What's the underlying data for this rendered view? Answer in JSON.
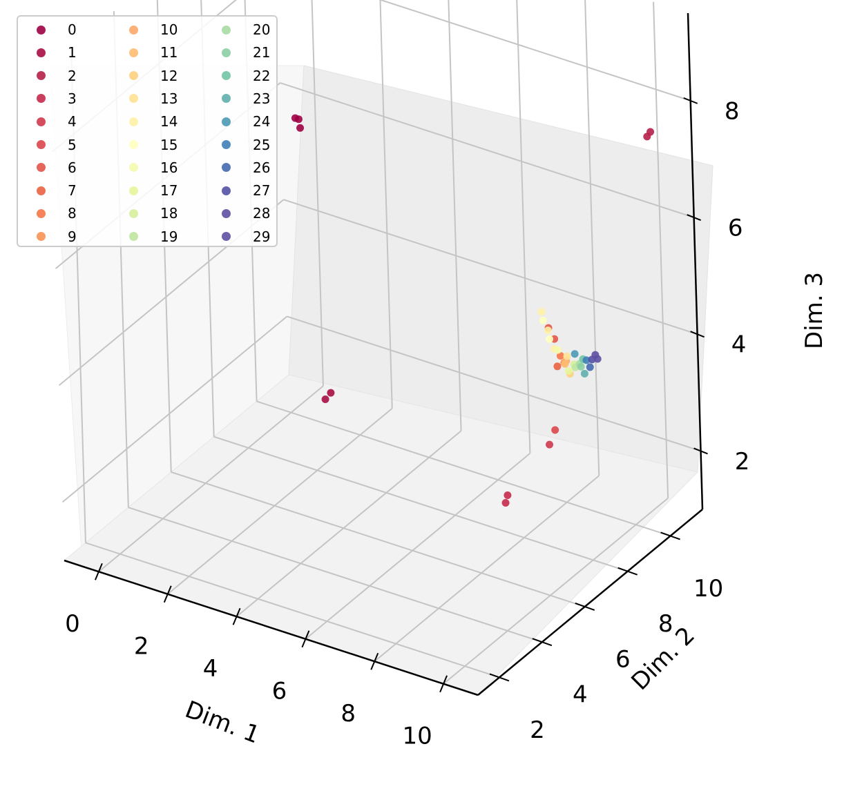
{
  "chart_data": {
    "type": "scatter",
    "projection": "3d",
    "xlabel": "Dim. 1",
    "ylabel": "Dim. 2",
    "zlabel": "Dim. 3",
    "x_ticks": [
      "0",
      "2",
      "4",
      "6",
      "8",
      "10"
    ],
    "y_ticks": [
      "2",
      "4",
      "6",
      "8",
      "10"
    ],
    "z_ticks": [
      "2",
      "4",
      "6",
      "8"
    ],
    "xlim": [
      -1,
      11
    ],
    "ylim": [
      1,
      11.5
    ],
    "zlim": [
      1,
      9.5
    ],
    "grid": true,
    "legend_position": "top-left",
    "legend_columns": 3,
    "series": [
      {
        "name": "0",
        "color": "#9e0142",
        "points": [
          [
            0.5,
            9.8,
            6.2
          ],
          [
            0.6,
            9.8,
            6.2
          ],
          [
            0.7,
            9.7,
            6.1
          ]
        ]
      },
      {
        "name": "1",
        "color": "#a90d44",
        "points": [
          [
            6.4,
            1.6,
            5.0
          ],
          [
            6.5,
            1.7,
            5.1
          ]
        ]
      },
      {
        "name": "2",
        "color": "#b61f48",
        "points": [
          [
            11.3,
            9.0,
            8.2
          ],
          [
            11.4,
            9.0,
            8.3
          ]
        ]
      },
      {
        "name": "3",
        "color": "#c52a4a",
        "points": [
          [
            10.5,
            3.3,
            3.5
          ],
          [
            10.5,
            3.4,
            3.6
          ]
        ]
      },
      {
        "name": "4",
        "color": "#d0384e",
        "points": [
          [
            11.0,
            4.6,
            4.2
          ]
        ]
      },
      {
        "name": "5",
        "color": "#da464c",
        "points": [
          [
            10.6,
            5.5,
            4.1
          ]
        ]
      },
      {
        "name": "6",
        "color": "#e45549",
        "points": [
          [
            10.3,
            5.8,
            5.7
          ],
          [
            10.4,
            5.9,
            5.5
          ]
        ]
      },
      {
        "name": "7",
        "color": "#ea6343",
        "points": [
          [
            10.4,
            6.0,
            5.0
          ]
        ]
      },
      {
        "name": "8",
        "color": "#f57547",
        "points": [
          [
            10.5,
            6.0,
            5.2
          ]
        ]
      },
      {
        "name": "9",
        "color": "#f89256",
        "points": [
          [
            10.6,
            6.0,
            5.1
          ]
        ]
      },
      {
        "name": "10",
        "color": "#fba868",
        "points": [
          [
            10.6,
            6.1,
            5.1
          ]
        ]
      },
      {
        "name": "11",
        "color": "#fdbd71",
        "points": [
          [
            10.5,
            6.2,
            5.0
          ]
        ]
      },
      {
        "name": "12",
        "color": "#fdd17f",
        "points": [
          [
            10.7,
            6.1,
            4.9
          ]
        ]
      },
      {
        "name": "13",
        "color": "#fee192",
        "points": [
          [
            10.5,
            6.3,
            5.1
          ]
        ]
      },
      {
        "name": "14",
        "color": "#fff1a9",
        "points": [
          [
            9.6,
            6.6,
            5.6
          ],
          [
            9.9,
            6.4,
            5.4
          ],
          [
            10.2,
            6.2,
            5.2
          ]
        ]
      },
      {
        "name": "15",
        "color": "#feffbe",
        "points": [
          [
            9.7,
            6.5,
            5.5
          ],
          [
            10.0,
            6.3,
            5.3
          ]
        ]
      },
      {
        "name": "16",
        "color": "#f4faae",
        "points": [
          [
            10.3,
            6.2,
            5.2
          ]
        ]
      },
      {
        "name": "17",
        "color": "#e7f59b",
        "points": [
          [
            10.6,
            6.2,
            4.9
          ]
        ]
      },
      {
        "name": "18",
        "color": "#d6ee9b",
        "points": [
          [
            10.7,
            6.3,
            5.0
          ]
        ]
      },
      {
        "name": "19",
        "color": "#bfe5a0",
        "points": [
          [
            10.8,
            6.2,
            5.0
          ]
        ]
      },
      {
        "name": "20",
        "color": "#a7dca4",
        "points": [
          [
            10.8,
            6.4,
            5.0
          ]
        ]
      },
      {
        "name": "21",
        "color": "#8ccea4",
        "points": [
          [
            10.9,
            6.3,
            5.0
          ]
        ]
      },
      {
        "name": "22",
        "color": "#72c4a5",
        "points": [
          [
            10.9,
            6.4,
            5.1
          ]
        ]
      },
      {
        "name": "23",
        "color": "#5eafad",
        "points": [
          [
            11.0,
            6.3,
            4.9
          ]
        ]
      },
      {
        "name": "24",
        "color": "#4c99b5",
        "points": [
          [
            10.6,
            6.5,
            5.1
          ]
        ]
      },
      {
        "name": "25",
        "color": "#3f80b8",
        "points": [
          [
            11.0,
            6.4,
            5.1
          ]
        ]
      },
      {
        "name": "26",
        "color": "#4569af",
        "points": [
          [
            11.1,
            6.4,
            5.0
          ]
        ]
      },
      {
        "name": "27",
        "color": "#5351a4",
        "points": [
          [
            11.1,
            6.5,
            5.1
          ]
        ]
      },
      {
        "name": "28",
        "color": "#5e4fa2",
        "points": [
          [
            11.2,
            6.5,
            5.2
          ]
        ]
      },
      {
        "name": "29",
        "color": "#5e4fa2",
        "points": [
          [
            11.2,
            6.6,
            5.1
          ]
        ]
      }
    ]
  }
}
